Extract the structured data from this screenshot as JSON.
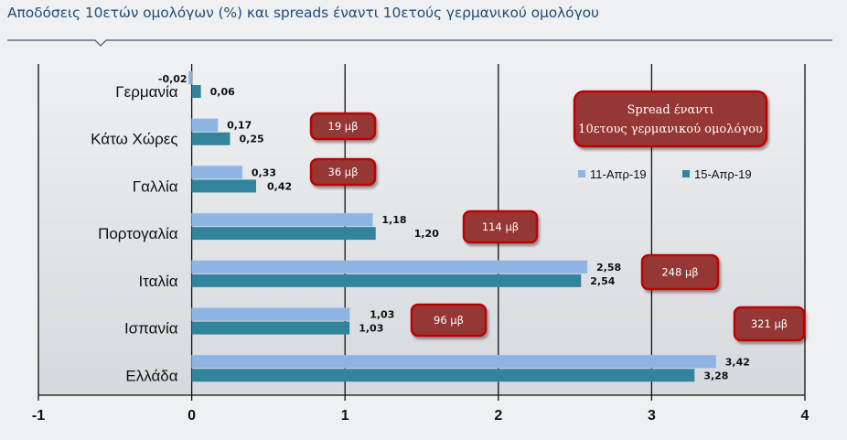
{
  "title": "Αποδόσεις 10ετών ομολόγων (%) και spreads έναντι 10ετούς γερμανικού ομολόγου",
  "chart_data": {
    "type": "bar",
    "orientation": "horizontal",
    "categories": [
      "Γερμανία",
      "Κάτω Χώρες",
      "Γαλλία",
      "Πορτογαλία",
      "Ιταλία",
      "Ισπανία",
      "Ελλάδα"
    ],
    "series": [
      {
        "name": "11-Απρ-19",
        "color": "#8eb4e3",
        "values": [
          -0.02,
          0.17,
          0.33,
          1.18,
          2.58,
          1.03,
          3.42
        ]
      },
      {
        "name": "15-Απρ-19",
        "color": "#31849b",
        "values": [
          0.06,
          0.25,
          0.42,
          1.2,
          2.54,
          1.03,
          3.28
        ]
      }
    ],
    "value_labels": {
      "11-Απρ-19": [
        "-0,02",
        "0,17",
        "0,33",
        "1,18",
        "2,58",
        "1,03",
        "3,42"
      ],
      "15-Απρ-19": [
        "0,06",
        "0,25",
        "0,42",
        "1,20",
        "2,54",
        "1,03",
        "3,28"
      ]
    },
    "xlim": [
      -1,
      4
    ],
    "xticks": [
      "-1",
      "0",
      "1",
      "2",
      "3",
      "4"
    ],
    "grid": true,
    "legend": "right",
    "spread_box_title": "Spread έναντι 10ετους γερμανικού ομολόγου",
    "spreads": [
      "19 μβ",
      "36 μβ",
      "114 μβ",
      "248 μβ",
      "96 μβ",
      "321 μβ"
    ]
  }
}
